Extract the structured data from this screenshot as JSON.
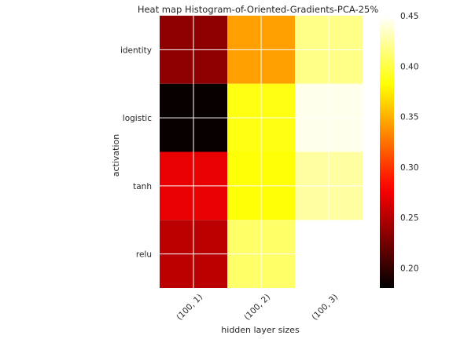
{
  "chart_data": {
    "type": "heatmap",
    "title": "Heat map Histogram-of-Oriented-Gradients-PCA-25%",
    "xlabel": "hidden layer sizes",
    "ylabel": "activation",
    "x_categories": [
      "(100, 1)",
      "(100, 2)",
      "(100, 3)"
    ],
    "y_categories": [
      "identity",
      "logistic",
      "tanh",
      "relu"
    ],
    "values": [
      [
        0.235,
        0.343,
        0.418
      ],
      [
        0.183,
        0.386,
        0.445
      ],
      [
        0.27,
        0.383,
        0.425
      ],
      [
        0.252,
        0.41,
        null
      ]
    ],
    "colorbar": {
      "min": 0.18,
      "max": 0.45,
      "ticks": [
        "0.20",
        "0.25",
        "0.30",
        "0.35",
        "0.40",
        "0.45"
      ],
      "colormap": "hot"
    },
    "grid": true
  },
  "colors": {
    "text": "#262626",
    "grid": "#ffffff",
    "background": "#ffffff"
  }
}
